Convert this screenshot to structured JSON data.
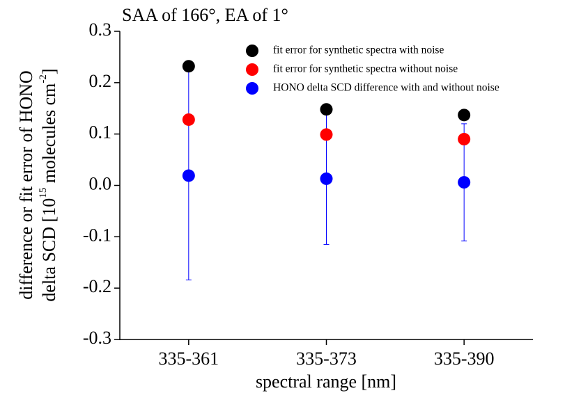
{
  "chart_data": {
    "type": "scatter",
    "title": "SAA of 166°, EA of 1°",
    "x_label": "spectral range [nm]",
    "y_label": {
      "line1": "difference or fit error of HONO",
      "line2": [
        "delta SCD [10",
        "15",
        " molecules cm",
        "-2",
        "]"
      ]
    },
    "categories": [
      "335-361",
      "335-373",
      "335-390"
    ],
    "series": [
      {
        "name": "fit error for synthetic spectra with noise",
        "color": "#000000",
        "values": [
          0.232,
          0.148,
          0.137
        ]
      },
      {
        "name": "fit error for synthetic spectra without noise",
        "color": "#ff0000",
        "values": [
          0.128,
          0.099,
          0.09
        ]
      },
      {
        "name": "HONO delta SCD difference with and without noise",
        "color": "#0000ff",
        "values": [
          0.019,
          0.013,
          0.006
        ],
        "errors": [
          0.203,
          0.128,
          0.114
        ]
      }
    ],
    "ylim": [
      -0.3,
      0.3
    ],
    "yticks": [
      -0.3,
      -0.2,
      -0.1,
      {
        "value": 0,
        "label": "0.0"
      },
      0.1,
      0.2,
      0.3
    ],
    "legend": "upper right"
  }
}
